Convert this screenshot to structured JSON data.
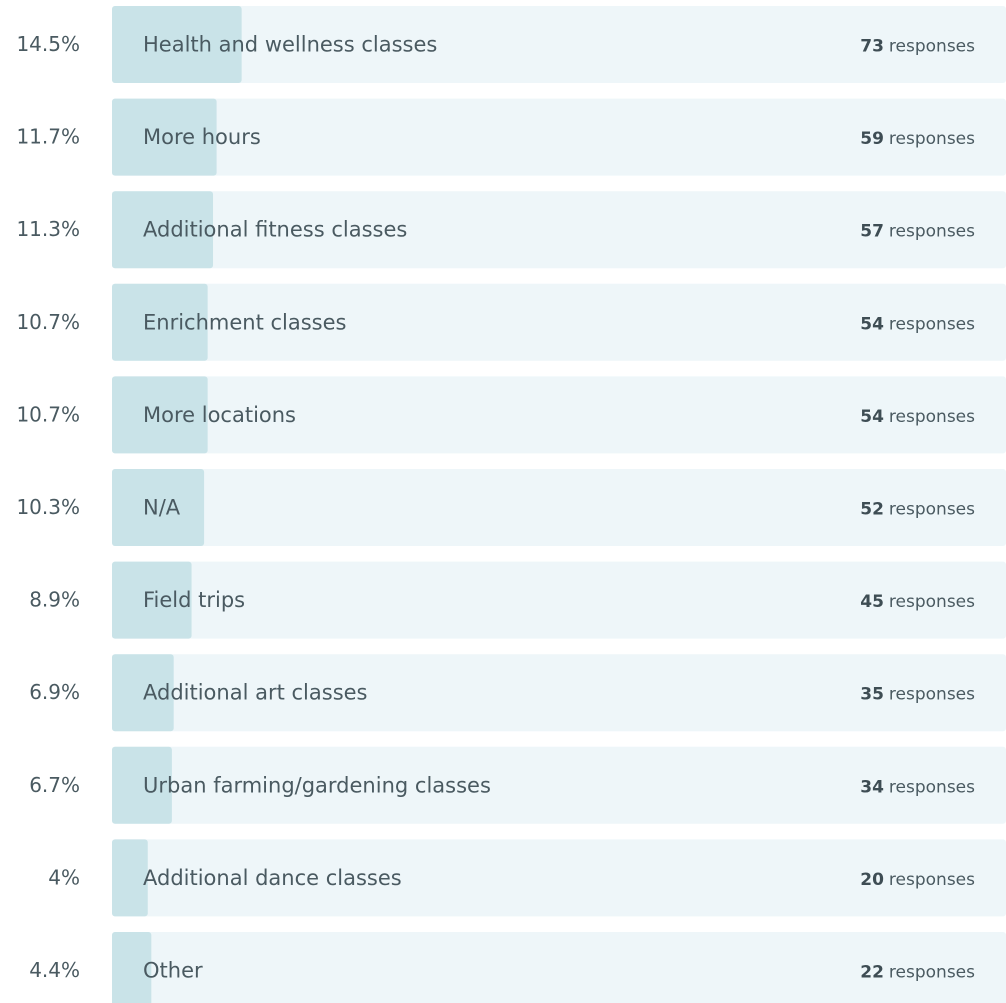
{
  "chart_data": {
    "type": "bar",
    "categories": [
      "Health and wellness classes",
      "More hours",
      "Additional fitness classes",
      "Enrichment classes",
      "More locations",
      "N/A",
      "Field trips",
      "Additional art classes",
      "Urban farming/gardening classes",
      "Additional dance classes",
      "Other"
    ],
    "values": [
      14.5,
      11.7,
      11.3,
      10.7,
      10.7,
      10.3,
      8.9,
      6.9,
      6.7,
      4,
      4.4
    ],
    "value_labels": [
      "14.5%",
      "11.7%",
      "11.3%",
      "10.7%",
      "10.7%",
      "10.3%",
      "8.9%",
      "6.9%",
      "6.7%",
      "4%",
      "4.4%"
    ],
    "counts": [
      73,
      59,
      57,
      54,
      54,
      52,
      45,
      35,
      34,
      20,
      22
    ],
    "count_unit": "responses",
    "xlim": [
      0,
      100
    ],
    "color": "#c9e3e8",
    "track_color": "#eef6f9"
  }
}
